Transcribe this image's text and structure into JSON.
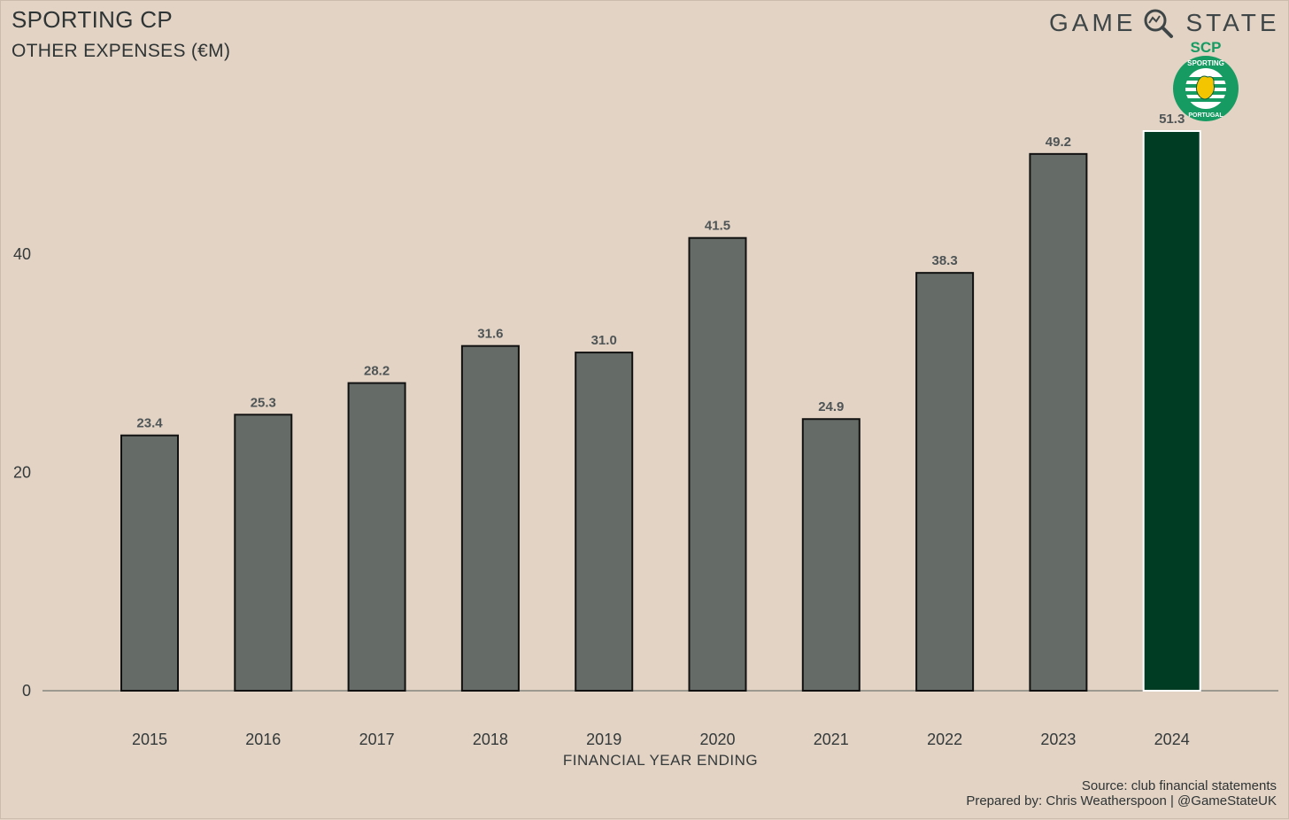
{
  "header": {
    "title": "SPORTING CP",
    "subtitle": "OTHER EXPENSES (€M)"
  },
  "brand": {
    "word_left": "GAME",
    "word_right": "STATE",
    "icon": "magnifier-icon"
  },
  "crest": {
    "text_top": "SCP",
    "text_ring_top": "SPORTING",
    "text_ring_bottom": "PORTUGAL",
    "icon": "lion-crest-icon"
  },
  "footer": {
    "source": "Source: club financial statements",
    "credit": "Prepared by: Chris Weatherspoon | @GameStateUK"
  },
  "colors": {
    "background": "#e2d3c4",
    "bar_default": "#656b67",
    "bar_highlight": "#003c24",
    "crest_green": "#169b62"
  },
  "chart_data": {
    "type": "bar",
    "title": "SPORTING CP",
    "subtitle": "OTHER EXPENSES (€M)",
    "xlabel": "FINANCIAL YEAR ENDING",
    "ylabel": "",
    "categories": [
      "2015",
      "2016",
      "2017",
      "2018",
      "2019",
      "2020",
      "2021",
      "2022",
      "2023",
      "2024"
    ],
    "values": [
      23.4,
      25.3,
      28.2,
      31.6,
      31.0,
      41.5,
      24.9,
      38.3,
      49.2,
      51.3
    ],
    "data_labels": [
      "23.4",
      "25.3",
      "28.2",
      "31.6",
      "31.0",
      "41.5",
      "24.9",
      "38.3",
      "49.2",
      "51.3"
    ],
    "highlight_category": "2024",
    "yticks": [
      0,
      20,
      40
    ],
    "ylim": [
      0,
      52
    ],
    "grid": false,
    "legend": "none"
  }
}
